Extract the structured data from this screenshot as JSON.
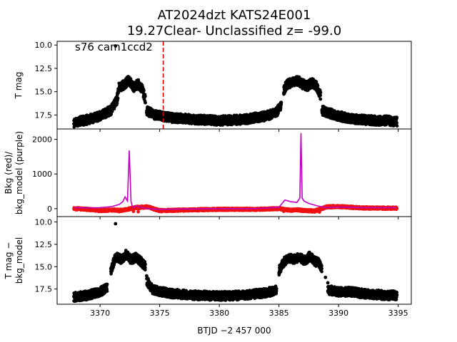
{
  "title_line1": "AT2024dzt  KATS24E001",
  "title_line2": "19.27Clear- Unclassified z= -99.0",
  "x_axis_label": "BTJD −2 457 000",
  "chart_data": [
    {
      "type": "scatter",
      "panel": "top",
      "ylabel": "T mag",
      "annotation": "s76 cam1ccd2",
      "y_inverted": true,
      "xlim": [
        3366.4,
        3396.1
      ],
      "ylim": [
        19.0,
        9.6
      ],
      "x_ticks": [
        3370,
        3375,
        3380,
        3385,
        3390,
        3395
      ],
      "y_ticks": [
        10.0,
        12.5,
        15.0,
        17.5
      ],
      "y_tick_labels": [
        "10.0",
        "12.5",
        "15.0",
        "17.5"
      ],
      "vline_x": 3375.3,
      "vline_color": "#e00000",
      "point_color": "#000000",
      "outliers": [
        [
          3371.3,
          10.1
        ]
      ],
      "segments": [
        {
          "x": [
            3367.8,
            3369.0,
            3370.0,
            3370.9,
            3371.4,
            3371.6,
            3372.0,
            3372.4,
            3372.8,
            3373.2,
            3373.5,
            3373.8
          ],
          "y": [
            18.3,
            18.0,
            17.6,
            17.0,
            16.0,
            14.5,
            14.3,
            13.8,
            14.5,
            14.2,
            14.6,
            15.8
          ]
        },
        {
          "x": [
            3373.9,
            3374.5,
            3376.0,
            3378.0,
            3380.0,
            3382.0,
            3384.0,
            3384.8,
            3385.2
          ],
          "y": [
            17.0,
            17.5,
            17.8,
            18.0,
            18.1,
            18.0,
            17.6,
            17.2,
            16.5
          ]
        },
        {
          "x": [
            3385.4,
            3385.7,
            3386.2,
            3386.6,
            3387.0,
            3387.4,
            3387.8,
            3388.2,
            3388.5
          ],
          "y": [
            14.8,
            14.2,
            14.0,
            13.8,
            14.2,
            14.4,
            14.0,
            14.5,
            15.5
          ]
        },
        {
          "x": [
            3388.6,
            3389.2,
            3390.0,
            3391.0,
            3392.0,
            3393.0,
            3394.0,
            3394.9
          ],
          "y": [
            17.0,
            17.3,
            17.6,
            17.9,
            18.0,
            18.1,
            18.1,
            18.2
          ]
        }
      ],
      "band_halfwidth": 0.5
    },
    {
      "type": "line",
      "panel": "middle",
      "ylabel": "Bkg (red)/\nbkg_model (purple)",
      "xlim": [
        3366.4,
        3396.1
      ],
      "ylim": [
        -230,
        2300
      ],
      "x_ticks": [
        3370,
        3375,
        3380,
        3385,
        3390,
        3395
      ],
      "y_ticks": [
        0,
        1000,
        2000
      ],
      "y_tick_labels": [
        "0",
        "1000",
        "2000"
      ],
      "series": [
        {
          "color": "#c000c0",
          "x": [
            3367.8,
            3369.0,
            3370.0,
            3371.0,
            3371.6,
            3371.9,
            3372.1,
            3372.3,
            3372.45,
            3372.6,
            3372.75,
            3373.0,
            3373.5,
            3374.0,
            3375.0,
            3377.0,
            3380.0,
            3383.0,
            3385.0,
            3385.5,
            3386.0,
            3386.5,
            3386.75,
            3386.85,
            3386.95,
            3387.1,
            3387.5,
            3388.2,
            3389.0,
            3390.0,
            3392.0,
            3394.9
          ],
          "y": [
            30,
            20,
            30,
            60,
            120,
            200,
            340,
            220,
            1680,
            200,
            20,
            80,
            30,
            0,
            -20,
            -10,
            0,
            0,
            40,
            250,
            200,
            180,
            300,
            2180,
            300,
            220,
            150,
            80,
            30,
            50,
            30,
            30
          ]
        },
        {
          "color": "#ee1111",
          "x": [
            3367.8,
            3369.0,
            3370.0,
            3371.0,
            3371.7,
            3372.0,
            3373.0,
            3374.0,
            3375.0,
            3377.0,
            3380.0,
            3383.0,
            3385.0,
            3386.0,
            3386.5,
            3387.0,
            3388.0,
            3389.0,
            3390.0,
            3392.0,
            3394.9
          ],
          "y": [
            0,
            -20,
            -60,
            -40,
            -50,
            -40,
            30,
            50,
            -60,
            -40,
            -20,
            -20,
            0,
            -50,
            -30,
            -50,
            -70,
            50,
            60,
            20,
            10
          ],
          "outliers": [
            [
              3371.6,
              -90
            ],
            [
              3372.8,
              -80
            ],
            [
              3373.2,
              -90
            ],
            [
              3385.4,
              -80
            ],
            [
              3386.9,
              -70
            ],
            [
              3387.6,
              -90
            ],
            [
              3388.4,
              -100
            ]
          ]
        }
      ]
    },
    {
      "type": "scatter",
      "panel": "bottom",
      "ylabel": "T mag −\nbkg_model",
      "y_inverted": true,
      "xlim": [
        3366.4,
        3396.1
      ],
      "ylim": [
        19.2,
        9.4
      ],
      "x_ticks": [
        3370,
        3375,
        3380,
        3385,
        3390,
        3395
      ],
      "x_tick_labels": [
        "3370",
        "3375",
        "3380",
        "3385",
        "3390",
        "3395"
      ],
      "y_ticks": [
        10.0,
        12.5,
        15.0,
        17.5
      ],
      "y_tick_labels": [
        "10.0",
        "12.5",
        "15.0",
        "17.5"
      ],
      "point_color": "#000000",
      "outliers": [
        [
          3371.3,
          10.2
        ]
      ],
      "segments": [
        {
          "x": [
            3367.8,
            3369.0,
            3370.0,
            3370.6
          ],
          "y": [
            18.4,
            18.2,
            17.8,
            17.4
          ]
        },
        {
          "x": [
            3370.9,
            3371.3,
            3371.8,
            3372.2,
            3372.6,
            3373.0,
            3373.4,
            3373.8
          ],
          "y": [
            15.5,
            13.8,
            14.2,
            13.6,
            14.2,
            14.0,
            14.4,
            15.0
          ]
        },
        {
          "x": [
            3373.9,
            3374.4,
            3376.0,
            3378.0,
            3380.0,
            3382.0,
            3384.0,
            3384.8
          ],
          "y": [
            16.5,
            17.6,
            18.0,
            18.2,
            18.3,
            18.2,
            17.9,
            17.6
          ]
        },
        {
          "x": [
            3385.0,
            3385.4,
            3385.8,
            3386.2,
            3386.7,
            3387.2,
            3387.6,
            3388.0,
            3388.4,
            3388.6
          ],
          "y": [
            15.5,
            14.5,
            14.0,
            14.2,
            14.0,
            14.3,
            13.8,
            14.4,
            14.6,
            15.2
          ]
        },
        {
          "x": [
            3389.1,
            3390.0,
            3391.0,
            3392.0,
            3393.0,
            3394.0,
            3394.9
          ],
          "y": [
            17.6,
            17.8,
            17.8,
            18.0,
            18.1,
            18.2,
            18.2
          ]
        }
      ],
      "extra_points": [
        [
          3388.9,
          16.2
        ],
        [
          3389.1,
          16.8
        ]
      ],
      "band_halfwidth": 0.5
    }
  ]
}
